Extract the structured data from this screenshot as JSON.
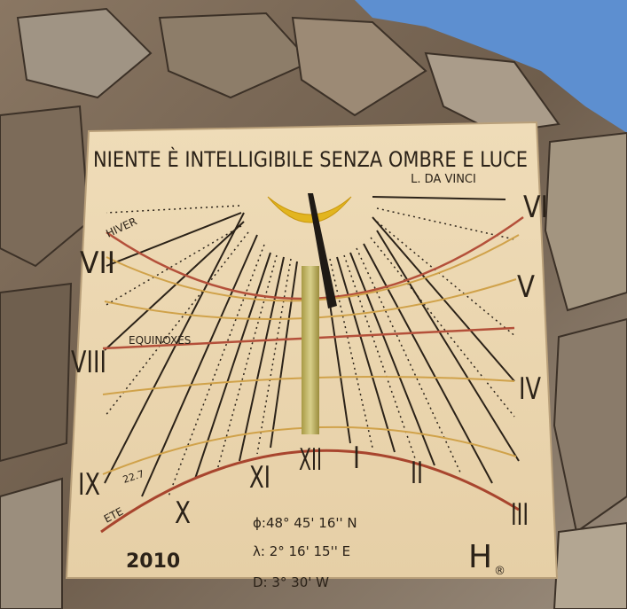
{
  "motto": "NIENTE È INTELLIGIBILE SENZA OMBRE E LUCE",
  "author": "L. DA VINCI",
  "hours": [
    "VI",
    "VII",
    "V",
    "VIII",
    "IV",
    "IX",
    "X",
    "XI",
    "XII",
    "I",
    "II",
    "III"
  ],
  "curves": {
    "winter": "HIVER",
    "equinox": "EQUINOXES",
    "date": "22.7",
    "summer": "ETE"
  },
  "year": "2010",
  "coordinates": {
    "latitude": "ϕ:48° 45' 16'' N",
    "longitude": "λ: 2° 16' 15'' E",
    "declination": "D: 3° 30' W"
  },
  "maker": "H",
  "maker_mark": "®"
}
